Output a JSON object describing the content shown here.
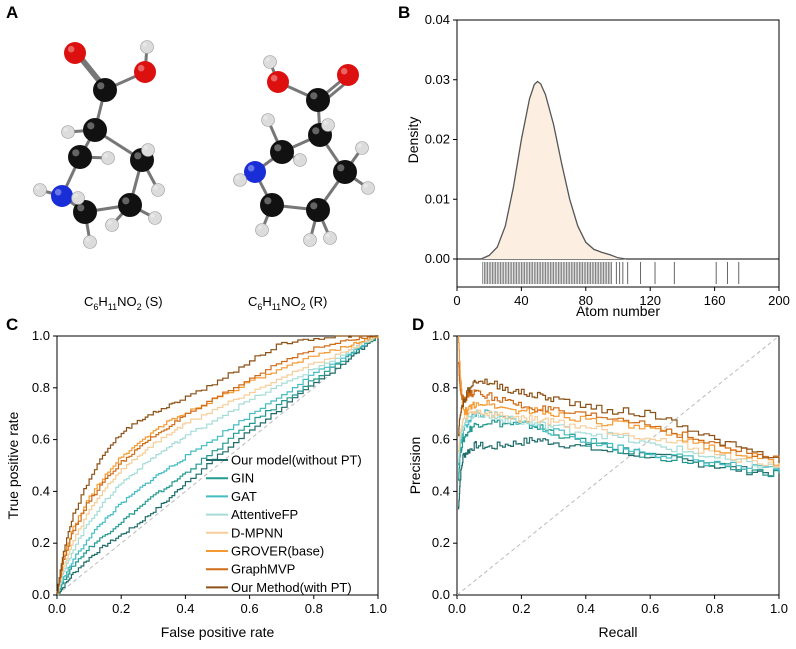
{
  "panels": {
    "A": {
      "letter": "A",
      "molecules": [
        {
          "formula_parts": [
            "C",
            "6",
            "H",
            "11",
            "NO",
            "2",
            " (S)"
          ]
        },
        {
          "formula_parts": [
            "C",
            "6",
            "H",
            "11",
            "NO",
            "2",
            " (R)"
          ]
        }
      ]
    },
    "B": {
      "letter": "B"
    },
    "C": {
      "letter": "C"
    },
    "D": {
      "letter": "D"
    }
  },
  "colors": {
    "carbon": "#111111",
    "oxygen": "#dd1010",
    "nitrogen": "#1a2ed8",
    "hydrogen": "#dcdcdc",
    "density_fill": "#fcefe1",
    "density_line": "#555555",
    "rug": "#666666",
    "diagonal": "#bbbbbb"
  },
  "chart_data": [
    {
      "type": "area",
      "panel": "B",
      "title": "",
      "xlabel": "Atom number",
      "ylabel": "Density",
      "xlim": [
        0,
        200
      ],
      "ylim": [
        0,
        0.04
      ],
      "xticks": [
        "0",
        "40",
        "80",
        "120",
        "160",
        "200"
      ],
      "yticks": [
        "0.00",
        "0.01",
        "0.02",
        "0.03",
        "0.04"
      ],
      "density_x": [
        15,
        20,
        25,
        30,
        35,
        40,
        45,
        48,
        50,
        52,
        55,
        60,
        65,
        70,
        75,
        80,
        85,
        90,
        95,
        100,
        105
      ],
      "density_y": [
        0.0,
        0.0006,
        0.002,
        0.0055,
        0.012,
        0.02,
        0.0268,
        0.0292,
        0.0297,
        0.0293,
        0.0275,
        0.0225,
        0.016,
        0.01,
        0.0055,
        0.0028,
        0.0016,
        0.0011,
        0.0007,
        0.0002,
        0.0
      ],
      "rug_dense_range": [
        16,
        96
      ],
      "rug_sparse": [
        99,
        101,
        103,
        106,
        114,
        123,
        135,
        161,
        168,
        175
      ]
    },
    {
      "type": "line",
      "panel": "C",
      "title": "",
      "xlabel": "False positive rate",
      "ylabel": "True positive rate",
      "xlim": [
        0,
        1
      ],
      "ylim": [
        0,
        1
      ],
      "xticks": [
        "0.0",
        "0.2",
        "0.4",
        "0.6",
        "0.8",
        "1.0"
      ],
      "yticks": [
        "0.0",
        "0.2",
        "0.4",
        "0.6",
        "0.8",
        "1.0"
      ],
      "legend_position": "lower-right",
      "series": [
        {
          "name": "Our model(without PT)",
          "color": "#1f6d6a",
          "x": [
            0,
            0.02,
            0.05,
            0.1,
            0.15,
            0.2,
            0.25,
            0.3,
            0.35,
            0.4,
            0.5,
            0.6,
            0.7,
            0.8,
            0.9,
            0.95,
            1.0
          ],
          "y": [
            0,
            0.03,
            0.08,
            0.14,
            0.19,
            0.23,
            0.27,
            0.32,
            0.37,
            0.43,
            0.53,
            0.63,
            0.72,
            0.81,
            0.9,
            0.95,
            1.0
          ]
        },
        {
          "name": "GIN",
          "color": "#229a8f",
          "x": [
            0,
            0.02,
            0.05,
            0.1,
            0.15,
            0.2,
            0.25,
            0.3,
            0.35,
            0.4,
            0.5,
            0.6,
            0.7,
            0.8,
            0.9,
            0.95,
            1.0
          ],
          "y": [
            0,
            0.05,
            0.11,
            0.18,
            0.23,
            0.28,
            0.33,
            0.38,
            0.42,
            0.47,
            0.56,
            0.66,
            0.74,
            0.83,
            0.91,
            0.96,
            1.0
          ]
        },
        {
          "name": "GAT",
          "color": "#44bcc4",
          "x": [
            0,
            0.02,
            0.05,
            0.1,
            0.15,
            0.2,
            0.25,
            0.3,
            0.35,
            0.4,
            0.5,
            0.6,
            0.7,
            0.8,
            0.9,
            0.95,
            1.0
          ],
          "y": [
            0,
            0.06,
            0.13,
            0.22,
            0.29,
            0.35,
            0.4,
            0.45,
            0.49,
            0.53,
            0.61,
            0.69,
            0.77,
            0.85,
            0.92,
            0.96,
            1.0
          ]
        },
        {
          "name": "AttentiveFP",
          "color": "#a6dcd7",
          "x": [
            0,
            0.02,
            0.05,
            0.1,
            0.15,
            0.2,
            0.25,
            0.3,
            0.35,
            0.4,
            0.5,
            0.6,
            0.7,
            0.8,
            0.9,
            0.95,
            1.0
          ],
          "y": [
            0,
            0.08,
            0.17,
            0.28,
            0.36,
            0.43,
            0.48,
            0.53,
            0.57,
            0.61,
            0.68,
            0.75,
            0.81,
            0.87,
            0.93,
            0.97,
            1.0
          ]
        },
        {
          "name": "D-MPNN",
          "color": "#f6cd98",
          "x": [
            0,
            0.02,
            0.05,
            0.1,
            0.15,
            0.2,
            0.25,
            0.3,
            0.35,
            0.4,
            0.5,
            0.6,
            0.7,
            0.8,
            0.9,
            0.95,
            1.0
          ],
          "y": [
            0,
            0.1,
            0.2,
            0.32,
            0.41,
            0.48,
            0.53,
            0.58,
            0.62,
            0.66,
            0.72,
            0.78,
            0.84,
            0.89,
            0.94,
            0.97,
            1.0
          ]
        },
        {
          "name": "GROVER(base)",
          "color": "#f59a32",
          "x": [
            0,
            0.02,
            0.05,
            0.1,
            0.15,
            0.2,
            0.25,
            0.3,
            0.35,
            0.4,
            0.5,
            0.6,
            0.7,
            0.8,
            0.9,
            0.95,
            1.0
          ],
          "y": [
            0,
            0.14,
            0.25,
            0.37,
            0.46,
            0.53,
            0.58,
            0.63,
            0.67,
            0.7,
            0.76,
            0.82,
            0.87,
            0.92,
            0.96,
            0.98,
            1.0
          ]
        },
        {
          "name": "GraphMVP",
          "color": "#cf6c17",
          "x": [
            0,
            0.02,
            0.05,
            0.1,
            0.15,
            0.2,
            0.25,
            0.3,
            0.35,
            0.4,
            0.5,
            0.6,
            0.7,
            0.8,
            0.9,
            0.95,
            1.0
          ],
          "y": [
            0,
            0.13,
            0.24,
            0.36,
            0.44,
            0.51,
            0.56,
            0.61,
            0.65,
            0.69,
            0.76,
            0.83,
            0.9,
            0.95,
            0.98,
            0.99,
            1.0
          ]
        },
        {
          "name": "Our Method(with PT)",
          "color": "#8c5115",
          "x": [
            0,
            0.02,
            0.05,
            0.1,
            0.15,
            0.2,
            0.25,
            0.3,
            0.35,
            0.4,
            0.5,
            0.6,
            0.7,
            0.8,
            0.9,
            0.95,
            1.0
          ],
          "y": [
            0,
            0.16,
            0.3,
            0.44,
            0.55,
            0.62,
            0.67,
            0.7,
            0.73,
            0.76,
            0.82,
            0.9,
            0.97,
            0.99,
            1.0,
            1.0,
            1.0
          ]
        }
      ]
    },
    {
      "type": "line",
      "panel": "D",
      "title": "",
      "xlabel": "Recall",
      "ylabel": "Precision",
      "xlim": [
        0,
        1
      ],
      "ylim": [
        0,
        1
      ],
      "xticks": [
        "0.0",
        "0.2",
        "0.4",
        "0.6",
        "0.8",
        "1.0"
      ],
      "yticks": [
        "0.0",
        "0.2",
        "0.4",
        "0.6",
        "0.8",
        "1.0"
      ],
      "series": [
        {
          "name": "Our model(without PT)",
          "color": "#1f6d6a",
          "x": [
            0.005,
            0.01,
            0.02,
            0.04,
            0.06,
            0.1,
            0.15,
            0.2,
            0.25,
            0.3,
            0.4,
            0.5,
            0.6,
            0.7,
            0.8,
            0.9,
            1.0
          ],
          "y": [
            0.33,
            0.45,
            0.54,
            0.56,
            0.58,
            0.57,
            0.58,
            0.59,
            0.6,
            0.59,
            0.57,
            0.55,
            0.54,
            0.52,
            0.5,
            0.48,
            0.47
          ]
        },
        {
          "name": "GIN",
          "color": "#229a8f",
          "x": [
            0.005,
            0.01,
            0.02,
            0.04,
            0.06,
            0.1,
            0.15,
            0.2,
            0.25,
            0.3,
            0.4,
            0.5,
            0.6,
            0.7,
            0.8,
            0.9,
            1.0
          ],
          "y": [
            0.45,
            0.55,
            0.6,
            0.64,
            0.66,
            0.67,
            0.66,
            0.66,
            0.65,
            0.63,
            0.59,
            0.56,
            0.54,
            0.52,
            0.5,
            0.48,
            0.47
          ]
        },
        {
          "name": "GAT",
          "color": "#44bcc4",
          "x": [
            0.005,
            0.01,
            0.02,
            0.04,
            0.06,
            0.1,
            0.15,
            0.2,
            0.25,
            0.3,
            0.4,
            0.5,
            0.6,
            0.7,
            0.8,
            0.9,
            1.0
          ],
          "y": [
            0.5,
            0.58,
            0.63,
            0.68,
            0.7,
            0.7,
            0.68,
            0.67,
            0.65,
            0.63,
            0.6,
            0.57,
            0.55,
            0.53,
            0.51,
            0.49,
            0.48
          ]
        },
        {
          "name": "AttentiveFP",
          "color": "#a6dcd7",
          "x": [
            0.005,
            0.01,
            0.02,
            0.04,
            0.06,
            0.1,
            0.15,
            0.2,
            0.25,
            0.3,
            0.4,
            0.5,
            0.6,
            0.7,
            0.8,
            0.9,
            1.0
          ],
          "y": [
            0.52,
            0.6,
            0.66,
            0.69,
            0.7,
            0.69,
            0.68,
            0.67,
            0.66,
            0.65,
            0.63,
            0.61,
            0.58,
            0.56,
            0.53,
            0.51,
            0.49
          ]
        },
        {
          "name": "D-MPNN",
          "color": "#f6cd98",
          "x": [
            0.005,
            0.01,
            0.02,
            0.04,
            0.06,
            0.1,
            0.15,
            0.2,
            0.25,
            0.3,
            0.4,
            0.5,
            0.6,
            0.7,
            0.8,
            0.9,
            1.0
          ],
          "y": [
            0.55,
            0.62,
            0.68,
            0.7,
            0.71,
            0.7,
            0.69,
            0.68,
            0.68,
            0.67,
            0.65,
            0.63,
            0.61,
            0.58,
            0.55,
            0.52,
            0.5
          ]
        },
        {
          "name": "GROVER(base)",
          "color": "#f59a32",
          "x": [
            0.005,
            0.01,
            0.02,
            0.04,
            0.06,
            0.1,
            0.15,
            0.2,
            0.25,
            0.3,
            0.4,
            0.5,
            0.6,
            0.7,
            0.8,
            0.9,
            1.0
          ],
          "y": [
            1.0,
            0.85,
            0.7,
            0.72,
            0.74,
            0.74,
            0.72,
            0.71,
            0.71,
            0.7,
            0.68,
            0.66,
            0.64,
            0.6,
            0.57,
            0.54,
            0.51
          ]
        },
        {
          "name": "GraphMVP",
          "color": "#cf6c17",
          "x": [
            0.005,
            0.01,
            0.02,
            0.04,
            0.06,
            0.1,
            0.15,
            0.2,
            0.25,
            0.3,
            0.4,
            0.5,
            0.6,
            0.7,
            0.8,
            0.9,
            1.0
          ],
          "y": [
            0.9,
            0.8,
            0.75,
            0.78,
            0.78,
            0.77,
            0.75,
            0.73,
            0.72,
            0.71,
            0.69,
            0.68,
            0.66,
            0.62,
            0.58,
            0.55,
            0.52
          ]
        },
        {
          "name": "Our Method(with PT)",
          "color": "#8c5115",
          "x": [
            0.005,
            0.01,
            0.02,
            0.04,
            0.06,
            0.1,
            0.15,
            0.2,
            0.25,
            0.3,
            0.4,
            0.5,
            0.6,
            0.7,
            0.8,
            0.9,
            1.0
          ],
          "y": [
            0.62,
            0.7,
            0.74,
            0.8,
            0.83,
            0.82,
            0.8,
            0.78,
            0.77,
            0.76,
            0.73,
            0.71,
            0.7,
            0.66,
            0.6,
            0.56,
            0.52
          ]
        }
      ]
    }
  ]
}
